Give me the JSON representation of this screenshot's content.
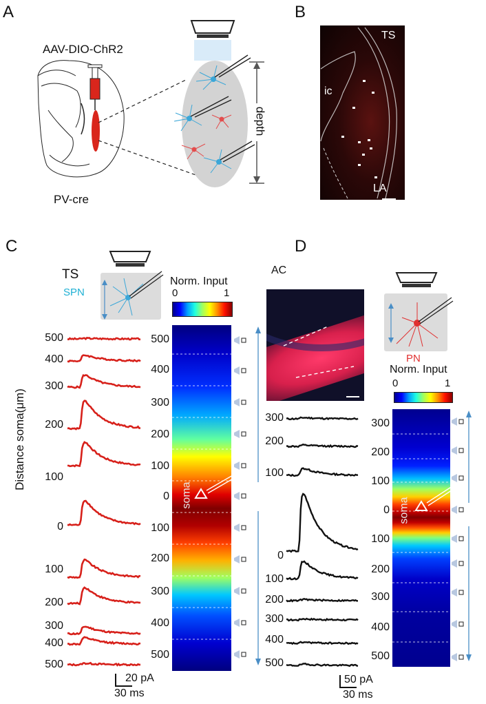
{
  "panels": {
    "A": "A",
    "B": "B",
    "C": "C",
    "D": "D"
  },
  "panelA": {
    "virus": "AAV-DIO-ChR2",
    "mouse": "PV-cre",
    "depth_label": "depth"
  },
  "panelB": {
    "ts": "TS",
    "ic": "ic",
    "la": "LA"
  },
  "panelC": {
    "region": "TS",
    "cell": "SPN",
    "cbar_title": "Norm. Input",
    "cbar_min": "0",
    "cbar_max": "1",
    "ylabel": "Distance soma(μm)",
    "soma": "soma",
    "trace_labels": [
      "500",
      "400",
      "300",
      "200",
      "100",
      "0",
      "100",
      "200",
      "300",
      "400",
      "500"
    ],
    "map_ticks": [
      "500",
      "400",
      "300",
      "200",
      "100",
      "0",
      "100",
      "200",
      "300",
      "400",
      "500"
    ],
    "scale_y": "20 pA",
    "scale_x": "30 ms",
    "trace_peaks": [
      0.02,
      0.2,
      0.42,
      0.95,
      0.82,
      0.85,
      0.6,
      0.55,
      0.25,
      0.22,
      0.05
    ]
  },
  "panelD": {
    "region": "AC",
    "cell": "PN",
    "cbar_title": "Norm. Input",
    "cbar_min": "0",
    "cbar_max": "1",
    "soma": "soma",
    "trace_labels": [
      "300",
      "200",
      "100",
      "0",
      "100",
      "200",
      "300",
      "400",
      "500"
    ],
    "map_ticks": [
      "300",
      "200",
      "100",
      "0",
      "100",
      "200",
      "300",
      "400",
      "500"
    ],
    "scale_y": "50 pA",
    "scale_x": "30 ms",
    "trace_peaks": [
      0.02,
      0.02,
      0.12,
      1.0,
      0.3,
      0.02,
      0.02,
      0.02,
      0.02
    ]
  },
  "colors": {
    "trace_red": "#d7201a",
    "trace_black": "#111111",
    "cyan": "#1eb0d4",
    "pn_red": "#e03030",
    "arrow_blue": "#4a8ec6"
  }
}
